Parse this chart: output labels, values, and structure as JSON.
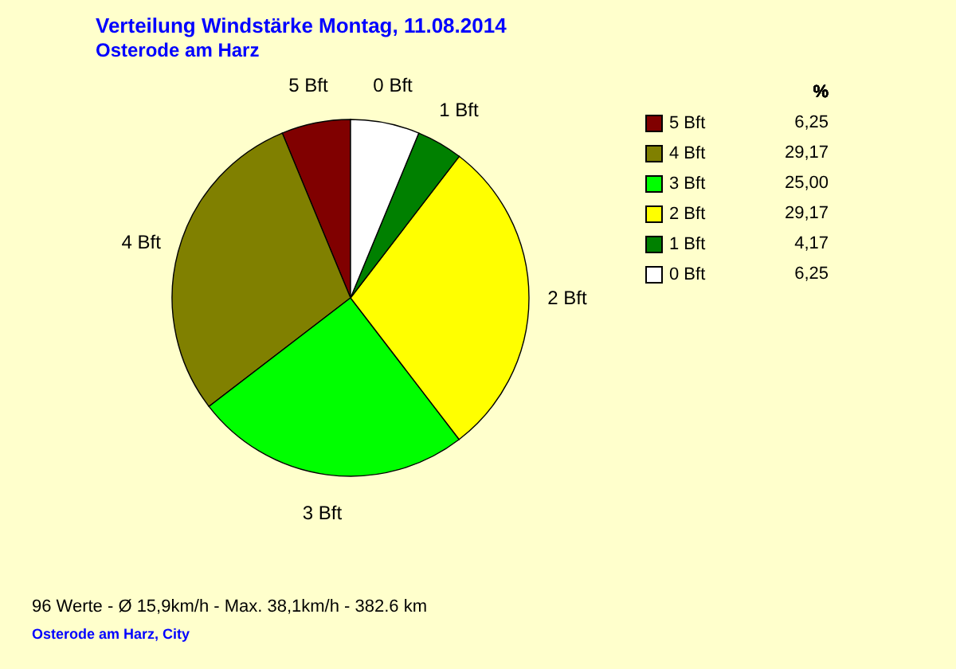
{
  "chart_data": {
    "type": "pie",
    "title": "Verteilung Windstärke  Montag, 11.08.2014",
    "subtitle": "Osterode am Harz",
    "legend_title": "%",
    "categories": [
      "5 Bft",
      "4 Bft",
      "3 Bft",
      "2 Bft",
      "1 Bft",
      "0 Bft"
    ],
    "values": [
      6.25,
      29.17,
      25.0,
      29.17,
      4.17,
      6.25
    ],
    "value_labels": [
      "6,25",
      "29,17",
      "25,00",
      "29,17",
      "4,17",
      "6,25"
    ],
    "colors": [
      "#800000",
      "#808000",
      "#00ff00",
      "#ffff00",
      "#008000",
      "#ffffff"
    ],
    "legend": "top right",
    "annotations": [
      "96 Werte   -   Ø 15,9km/h  -  Max. 38,1km/h   -   382.6 km",
      "Osterode am Harz, City"
    ]
  }
}
